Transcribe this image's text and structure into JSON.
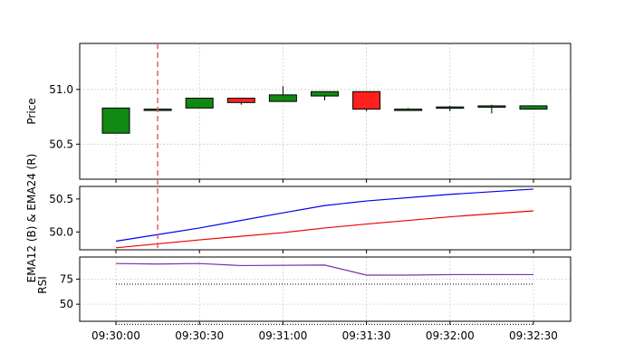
{
  "chart_data": [
    {
      "panel": "price",
      "type": "candlestick",
      "ylabel": "Price",
      "ylim": [
        50.18,
        51.42
      ],
      "yticks": [
        50.5,
        51.0
      ],
      "ytick_labels": [
        "50.5",
        "51.0"
      ],
      "grid": true,
      "marker_x_seconds": 15,
      "up_color": "#118811",
      "down_color": "#ff2020",
      "candles": [
        {
          "t": 0,
          "open": 50.6,
          "close": 50.83,
          "high": 50.83,
          "low": 50.6
        },
        {
          "t": 15,
          "open": 50.82,
          "close": 50.82,
          "high": 50.83,
          "low": 50.81
        },
        {
          "t": 30,
          "open": 50.83,
          "close": 50.92,
          "high": 50.92,
          "low": 50.83
        },
        {
          "t": 45,
          "open": 50.92,
          "close": 50.88,
          "high": 50.92,
          "low": 50.86
        },
        {
          "t": 60,
          "open": 50.89,
          "close": 50.95,
          "high": 51.03,
          "low": 50.89
        },
        {
          "t": 75,
          "open": 50.94,
          "close": 50.98,
          "high": 50.98,
          "low": 50.9
        },
        {
          "t": 90,
          "open": 50.98,
          "close": 50.82,
          "high": 50.98,
          "low": 50.8
        },
        {
          "t": 105,
          "open": 50.81,
          "close": 50.82,
          "high": 50.83,
          "low": 50.81
        },
        {
          "t": 120,
          "open": 50.83,
          "close": 50.84,
          "high": 50.85,
          "low": 50.8
        },
        {
          "t": 135,
          "open": 50.85,
          "close": 50.85,
          "high": 50.86,
          "low": 50.78
        },
        {
          "t": 150,
          "open": 50.82,
          "close": 50.85,
          "high": 50.85,
          "low": 50.82
        }
      ]
    },
    {
      "panel": "ema",
      "type": "line",
      "ylabel": "EMA12 (B) & EMA24 (R)",
      "ylim": [
        49.73,
        50.69
      ],
      "yticks": [
        50.0,
        50.5
      ],
      "ytick_labels": [
        "50.0",
        "50.5"
      ],
      "grid": false,
      "series": [
        {
          "color": "#0000ee",
          "x": [
            0,
            30,
            60,
            75,
            90,
            120,
            150
          ],
          "y": [
            49.86,
            50.06,
            50.29,
            50.4,
            50.47,
            50.57,
            50.65
          ]
        },
        {
          "color": "#ee0000",
          "x": [
            0,
            30,
            60,
            75,
            90,
            120,
            150
          ],
          "y": [
            49.76,
            49.88,
            49.99,
            50.06,
            50.12,
            50.23,
            50.32
          ]
        }
      ]
    },
    {
      "panel": "rsi",
      "type": "line",
      "ylabel": "RSI",
      "ylim": [
        33,
        97
      ],
      "yticks": [
        50,
        75
      ],
      "ytick_labels": [
        "50",
        "75"
      ],
      "grid": true,
      "series": [
        {
          "color": "#7b2fb0",
          "x": [
            0,
            15,
            30,
            45,
            75,
            90,
            105,
            120,
            150
          ],
          "y": [
            90.5,
            90.0,
            90.5,
            88.5,
            89.0,
            79.0,
            79.0,
            79.5,
            79.5
          ]
        }
      ],
      "reference_lines": [
        70,
        30
      ]
    }
  ],
  "x_axis": {
    "ticks_seconds": [
      0,
      30,
      60,
      90,
      120,
      150
    ],
    "tick_labels": [
      "09:30:00",
      "09:30:30",
      "09:31:00",
      "09:31:30",
      "09:32:00",
      "09:32:30"
    ]
  },
  "colors": {
    "grid": "#cfcfcf",
    "marker": "#e06060",
    "axis": "#000000"
  }
}
